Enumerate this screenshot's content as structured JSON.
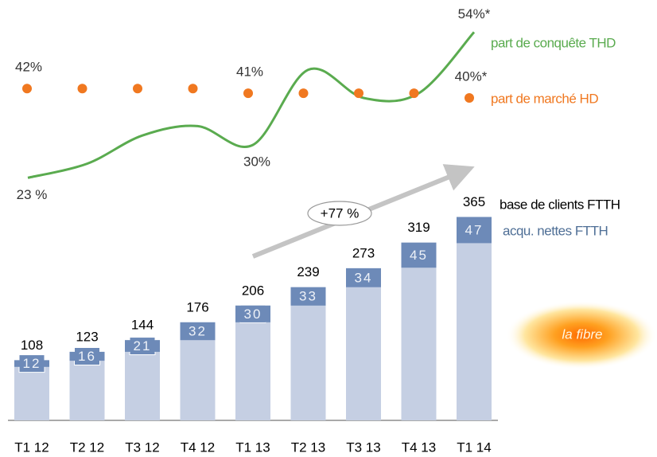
{
  "chart_data": {
    "type": "combo",
    "categories": [
      "T1 12",
      "T2 12",
      "T3 12",
      "T4 12",
      "T1 13",
      "T2 13",
      "T3 13",
      "T4 13",
      "T1 14"
    ],
    "series": [
      {
        "name": "base de clients FTTH",
        "type": "bar",
        "color": "#c5cfe3",
        "values": [
          108,
          123,
          144,
          176,
          206,
          239,
          273,
          319,
          365
        ]
      },
      {
        "name": "acqu. nettes FTTH",
        "type": "bar-segment",
        "color": "#6d8ab8",
        "legend_color": "#4f6f96",
        "values": [
          12,
          16,
          21,
          32,
          30,
          33,
          34,
          45,
          47
        ]
      },
      {
        "name": "part de conquête THD",
        "type": "line",
        "axis": "y2",
        "color": "#5aab4f",
        "values": [
          23,
          26,
          32,
          34,
          30,
          46,
          40,
          41,
          54
        ],
        "value_labels": [
          "23 %",
          null,
          null,
          null,
          "30%",
          null,
          null,
          null,
          "54%*"
        ]
      },
      {
        "name": "part de marché HD",
        "type": "dots",
        "axis": "y2",
        "color": "#f07820",
        "values": [
          42,
          42,
          42,
          42,
          41,
          41,
          41,
          41,
          40
        ],
        "value_labels": [
          "42%",
          null,
          null,
          null,
          "41%",
          null,
          null,
          null,
          "40%*"
        ]
      }
    ],
    "ylim": [
      0,
      400
    ],
    "y2lim": [
      0,
      60
    ],
    "annotation": "+77 %",
    "logo_text": "la fibre"
  }
}
